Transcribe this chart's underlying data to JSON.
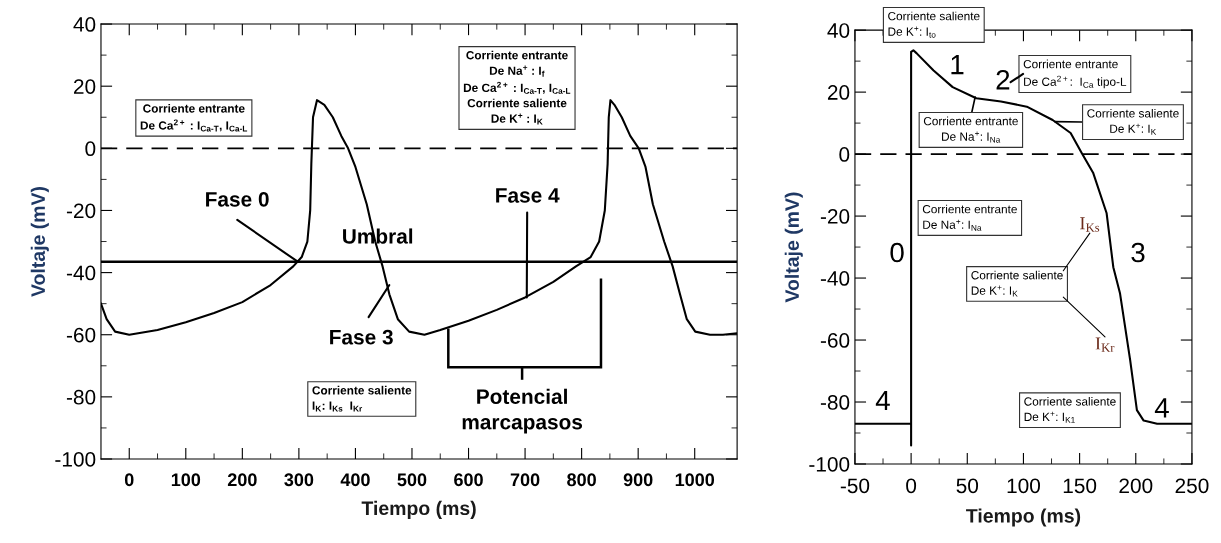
{
  "chart_data": [
    {
      "type": "line",
      "xlabel": "Tiempo (ms)",
      "ylabel": "Voltaje (mV)",
      "xlim": [
        -50,
        1075
      ],
      "ylim": [
        -100,
        40
      ],
      "xticks": [
        0,
        100,
        200,
        300,
        400,
        500,
        600,
        700,
        800,
        900,
        1000
      ],
      "yticks": [
        -100,
        -80,
        -60,
        -40,
        -20,
        0,
        20,
        40
      ],
      "series": [
        {
          "color": "#000000",
          "x": [
            -50,
            -40,
            -25,
            0,
            50,
            100,
            150,
            200,
            250,
            290,
            305,
            315,
            320,
            322,
            325,
            332,
            345,
            360,
            375,
            387,
            400,
            420,
            435,
            448,
            460,
            475,
            495,
            522,
            550,
            600,
            650,
            700,
            750,
            790,
            816,
            831,
            841,
            846,
            848,
            851,
            858,
            871,
            886,
            901,
            913,
            926,
            946,
            961,
            974,
            986,
            1001,
            1027,
            1050,
            1075
          ],
          "values": [
            -50,
            -55,
            -59,
            -60,
            -58.5,
            -56,
            -53,
            -49.5,
            -44,
            -38,
            -35,
            -30,
            -20,
            -5,
            10,
            15.5,
            14,
            10,
            4,
            0,
            -6,
            -18,
            -30,
            -38,
            -47,
            -55,
            -59,
            -60,
            -58.5,
            -55.5,
            -52,
            -48,
            -43,
            -38,
            -35,
            -30,
            -20,
            -5,
            10,
            15.5,
            14,
            10,
            4,
            0,
            -6,
            -18,
            -30,
            -38,
            -47,
            -55,
            -59,
            -60,
            -60,
            -59.5
          ]
        }
      ],
      "ref_lines": [
        {
          "axis": "y",
          "value": 0,
          "line_style": "dashed"
        },
        {
          "axis": "y",
          "value": -36.5,
          "label": "Umbral"
        }
      ],
      "annotations": [
        "Corriente entrante\nDe Ca$^{2+}$ : I$_{Ca‐T}$, I$_{Ca‐L}$",
        "Corriente entrante\nDe Na$^{+}$ : I$_{f}$\nDe Ca$^{2+}$ : I$_{Ca‐T}$, I$_{Ca‐L}$\nCorriente saliente\nDe K$^{+}$ : I$_{K}$",
        {
          "text": "Fase 0",
          "x": 298,
          "y": -36.5
        },
        {
          "text": "Fase 4",
          "x": 703,
          "y": -48
        },
        {
          "text": "Fase 3",
          "x": 460,
          "y": -44
        },
        "Corriente saliente\nI$_{K}$: I$_{Ks}$  I$_{Kr}$",
        "Potencial\nmarcapasos"
      ]
    },
    {
      "type": "line",
      "xlabel": "Tiempo (ms)",
      "ylabel": "Voltaje (mV)",
      "xlim": [
        -50,
        250
      ],
      "ylim": [
        -100,
        40
      ],
      "xticks": [
        -50,
        0,
        50,
        100,
        150,
        200,
        250
      ],
      "yticks": [
        -100,
        -80,
        -60,
        -40,
        -20,
        0,
        20,
        40
      ],
      "series": [
        {
          "color": "#000000",
          "x": [
            -50,
            0,
            0,
            0,
            2,
            5,
            20,
            37,
            58,
            80,
            103,
            126,
            142,
            152,
            162,
            174,
            180,
            186,
            195,
            201,
            207,
            219,
            250
          ],
          "values": [
            -87,
            -87,
            -94,
            33,
            33.5,
            32.5,
            27,
            21.6,
            18,
            17,
            15.3,
            11,
            6.8,
            0.3,
            -6,
            -19,
            -36.5,
            -45,
            -66.5,
            -82.6,
            -86,
            -87,
            -87
          ]
        }
      ],
      "ref_lines": [
        {
          "axis": "y",
          "value": 0,
          "line_style": "dashed"
        }
      ],
      "annotations": [
        "Corriente saliente\nDe K$^{+}$: I$_{to}$",
        "1",
        "2",
        "Corriente entrante\nDe Ca$^{2+}$:  I$_{Ca}$ tipo-L",
        {
          "text": "Corriente entrante\nDe Na$^{+}$: I$_{Na}$",
          "x": 57,
          "y": 18.4
        },
        {
          "text": "Corriente saliente\nDe K$^{+}$: I$_{K}$",
          "x": 128,
          "y": 10.5
        },
        "Corriente entrante\nDe Na$^{+}$: I$_{Na}$",
        "0",
        "3",
        "Corriente saliente\nDe K$^{+}$: I$_{K}$",
        "I$_{Ks}$",
        "I$_{Kr}$",
        "4",
        "4",
        "Corriente saliente\nDe K$^{+}$: I$_{K1}$"
      ]
    }
  ]
}
